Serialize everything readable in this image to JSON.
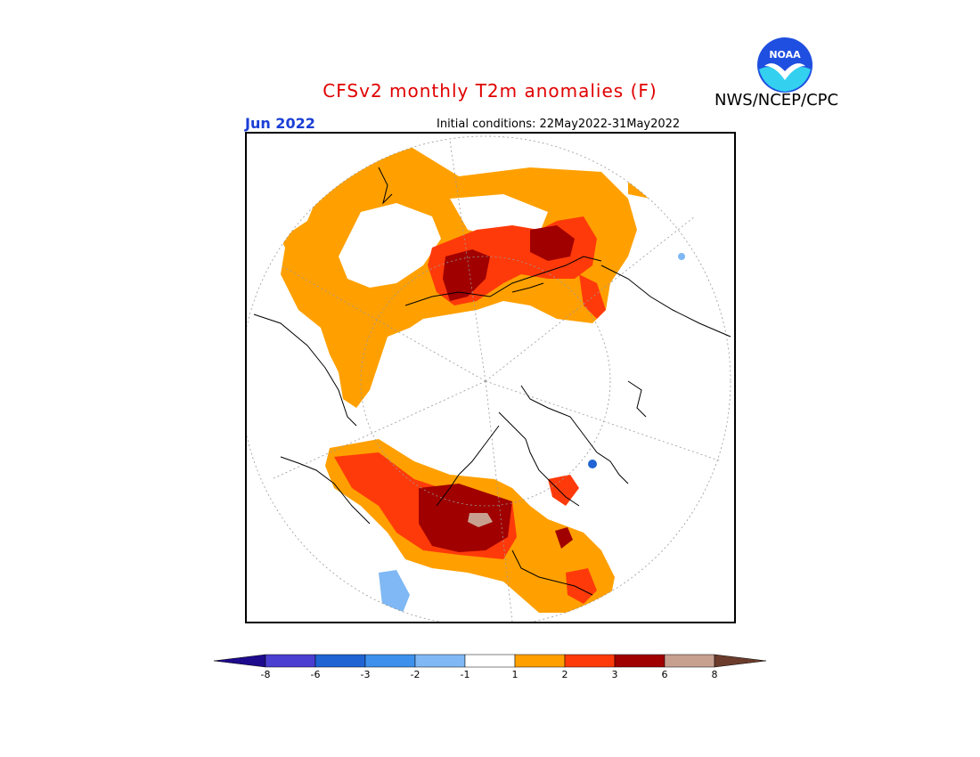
{
  "header": {
    "title": "CFSv2 monthly T2m anomalies (F)",
    "credit": "NWS/NCEP/CPC",
    "month": "Jun 2022",
    "initial_conditions": "Initial conditions: 22May2022-31May2022"
  },
  "logo": {
    "text": "NOAA",
    "icon": "noaa-logo"
  },
  "map": {
    "projection": "north-polar-stereographic",
    "variable": "2m temperature anomaly",
    "units": "F"
  },
  "colorbar": {
    "tick_labels": [
      "-8",
      "-6",
      "-3",
      "-2",
      "-1",
      "1",
      "2",
      "3",
      "6",
      "8"
    ],
    "bins": [
      {
        "range": "< -8",
        "color": "#1e0a8c"
      },
      {
        "range": "-8 to -6",
        "color": "#4a3fd0"
      },
      {
        "range": "-6 to -3",
        "color": "#1f64d2"
      },
      {
        "range": "-3 to -2",
        "color": "#3d91ec"
      },
      {
        "range": "-2 to -1",
        "color": "#7fb8f4"
      },
      {
        "range": "-1 to 1",
        "color": "#ffffff"
      },
      {
        "range": "1 to 2",
        "color": "#ffa000"
      },
      {
        "range": "2 to 3",
        "color": "#ff3a0a"
      },
      {
        "range": "3 to 6",
        "color": "#a00000"
      },
      {
        "range": "6 to 8",
        "color": "#c8a090"
      },
      {
        "range": "> 8",
        "color": "#6b3c2c"
      }
    ]
  }
}
